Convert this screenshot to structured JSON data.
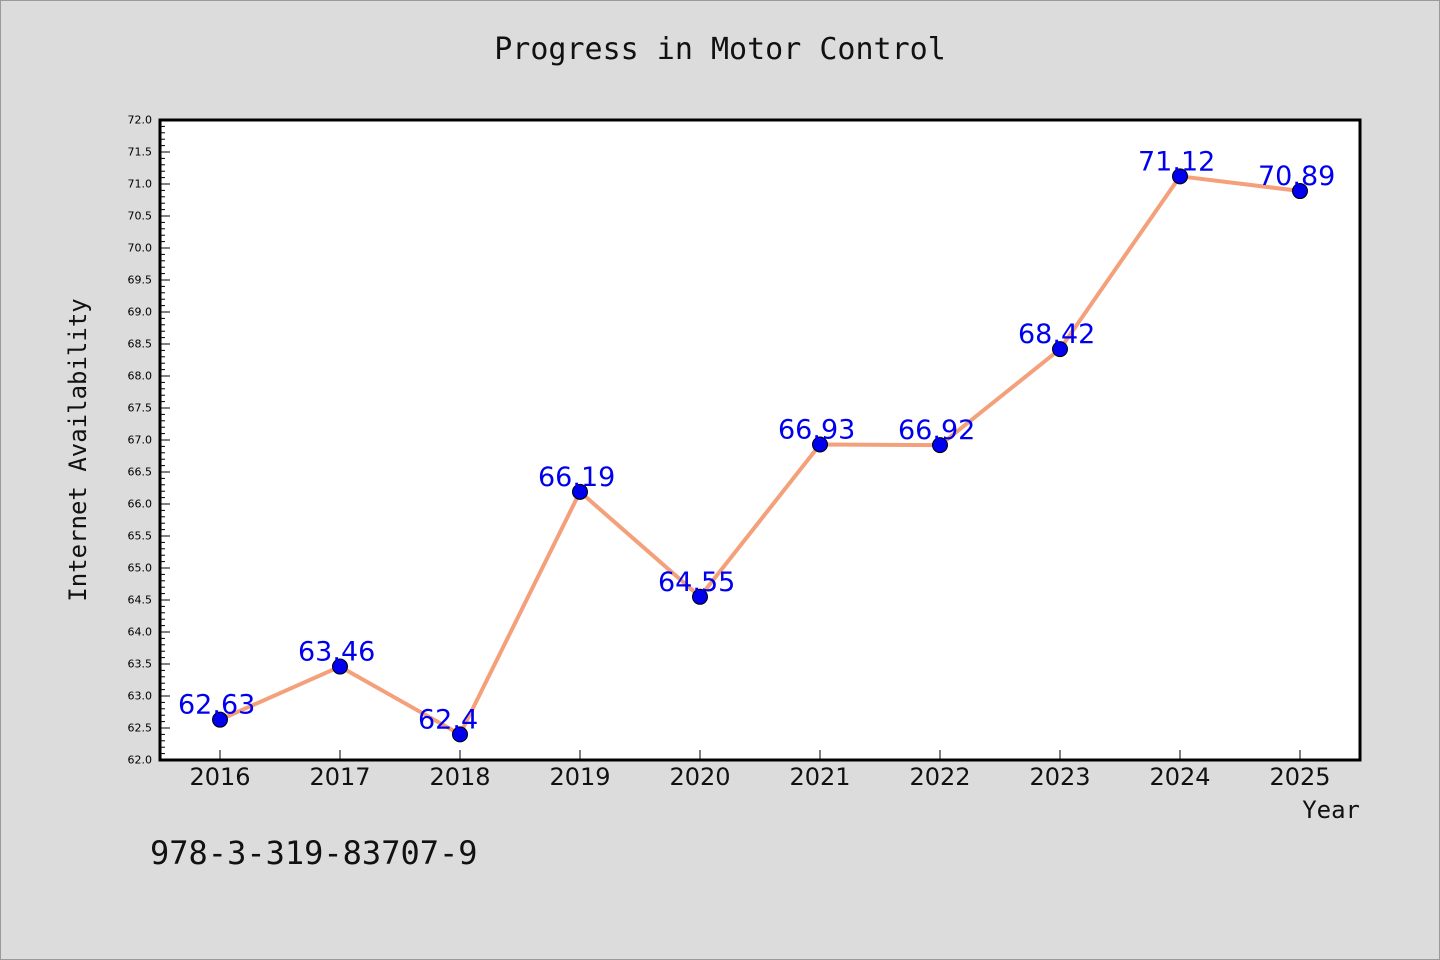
{
  "chart_data": {
    "type": "line",
    "title": "Progress in Motor Control",
    "xlabel": "Year",
    "ylabel": "Internet Availability",
    "categories": [
      "2016",
      "2017",
      "2018",
      "2019",
      "2020",
      "2021",
      "2022",
      "2023",
      "2024",
      "2025"
    ],
    "values": [
      62.63,
      63.46,
      62.4,
      66.19,
      64.55,
      66.93,
      66.92,
      68.42,
      71.12,
      70.89
    ],
    "data_labels": [
      "62.63",
      "63.46",
      "62.4",
      "66.19",
      "64.55",
      "66.93",
      "66.92",
      "68.42",
      "71.12",
      "70.89"
    ],
    "ylim": [
      62.0,
      72.0
    ],
    "y_ticks": [
      "62.0",
      "62.5",
      "63.0",
      "63.5",
      "64.0",
      "64.5",
      "65.0",
      "65.5",
      "66.0",
      "66.5",
      "67.0",
      "67.5",
      "68.0",
      "68.5",
      "69.0",
      "69.5",
      "70.0",
      "70.5",
      "71.0",
      "71.5",
      "72.0"
    ],
    "grid": false,
    "legend": "none",
    "colors": {
      "line": "#f4a07a",
      "marker": "#0000ee",
      "label": "#0000ee"
    }
  },
  "footer": {
    "isbn": "978-3-319-83707-9"
  },
  "colors": {
    "background": "#dcdcdc",
    "plot_background": "#ffffff"
  }
}
